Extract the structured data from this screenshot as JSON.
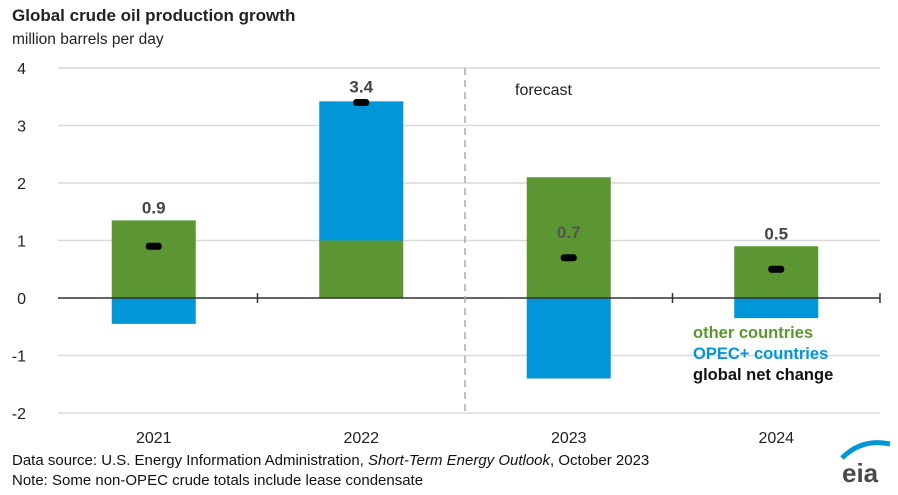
{
  "chart_data": {
    "type": "bar",
    "stacked": true,
    "title": "Global crude oil production growth",
    "ylabel": "million barrels per day",
    "ylim": [
      -2,
      4
    ],
    "yticks": [
      4,
      3,
      2,
      1,
      0,
      -1,
      -2
    ],
    "grid": true,
    "categories": [
      "2021",
      "2022",
      "2023",
      "2024"
    ],
    "series": [
      {
        "name": "other countries",
        "color": "#5b9632",
        "values": [
          1.35,
          1.0,
          2.1,
          0.9
        ]
      },
      {
        "name": "OPEC+ countries",
        "color": "#0096d7",
        "values": [
          -0.45,
          2.42,
          -1.4,
          -0.35
        ]
      }
    ],
    "net": {
      "name": "global net change",
      "color": "#000000",
      "values": [
        0.9,
        3.4,
        0.7,
        0.5
      ],
      "labels": [
        "0.9",
        "3.4",
        "0.7",
        "0.5"
      ]
    },
    "annotation": "forecast",
    "forecast_starts_after": "2022",
    "legend_placement": "bottom-right"
  },
  "source_prefix": "Data source: U.S. Energy Information Administration, ",
  "source_title": "Short-Term Energy Outlook",
  "source_suffix": ", October 2023",
  "note": "Note: Some non-OPEC crude totals include lease condensate",
  "logo": "eia"
}
